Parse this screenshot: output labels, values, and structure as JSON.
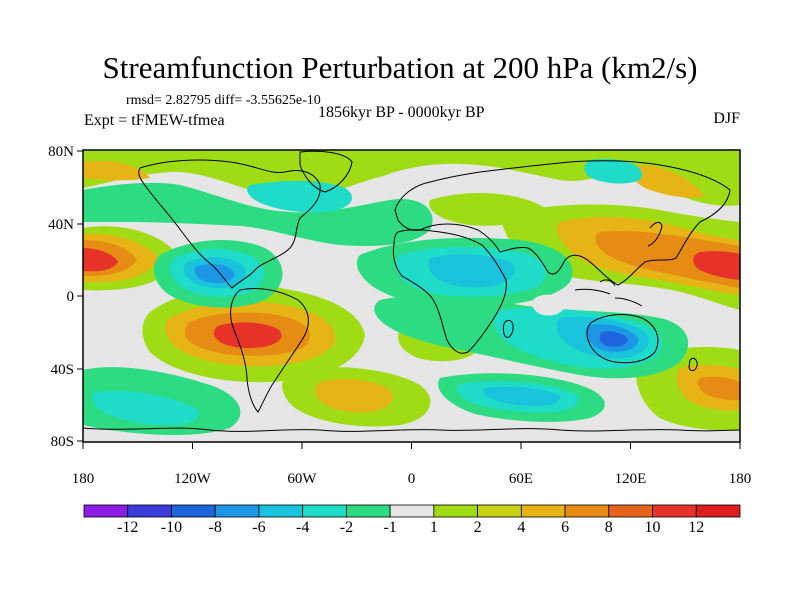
{
  "title": "Streamfunction Perturbation at 200 hPa (km2/s)",
  "stats": "rmsd= 2.82795 diff= -3.55625e-10",
  "period": "1856kyr BP - 0000kyr BP",
  "experiment": "Expt = tFMEW-tfmea",
  "season": "DJF",
  "lat_labels": [
    "80N",
    "40N",
    "0",
    "40S",
    "80S"
  ],
  "lon_labels": [
    "180",
    "120W",
    "60W",
    "0",
    "60E",
    "120E",
    "180"
  ],
  "colorbar": {
    "labels": [
      "-12",
      "-10",
      "-8",
      "-6",
      "-4",
      "-2",
      "-1",
      "1",
      "2",
      "4",
      "6",
      "8",
      "10",
      "12"
    ],
    "colors": [
      "#8c1ee6",
      "#3c3cdc",
      "#1e64dc",
      "#1e96e6",
      "#19c3dc",
      "#1edcc8",
      "#2ddc82",
      "#e6e6e6",
      "#a0dc14",
      "#c8d214",
      "#e6b414",
      "#e68c14",
      "#e6641e",
      "#e63228",
      "#dc1e1e"
    ]
  },
  "colors": {
    "neg_strong": "#1e64dc",
    "neg_mid": "#19c3dc",
    "neg_weak": "#2ddc82",
    "neutral": "#e6e6e6",
    "pos_weak": "#a0dc14",
    "pos_mid": "#e6b414",
    "pos_strong": "#e63228"
  }
}
